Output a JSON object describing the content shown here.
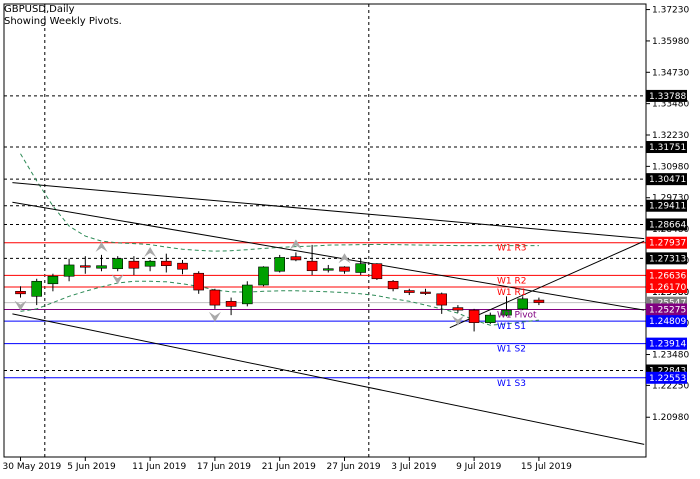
{
  "header": {
    "symbol_line": "GBPUSD,Daily",
    "indicator_line": "Showing Weekly Pivots."
  },
  "colors": {
    "background": "#ffffff",
    "frame": "#000000",
    "grid": "#000000",
    "bull": "#00a000",
    "bear": "#ff0000",
    "resistance": "#ff0000",
    "support": "#0000ff",
    "pivot": "#800080",
    "envelope": "#2e8b57",
    "fractal": "#a9a9a9",
    "trendline": "#000000"
  },
  "chart_data": {
    "type": "candlestick",
    "ylim": [
      1.19395,
      1.37452
    ],
    "y_ticks": [
      "1.37230",
      "1.35980",
      "1.34730",
      "1.33480",
      "1.32230",
      "1.30980",
      "1.29730",
      "1.28480",
      "1.27230",
      "1.25980",
      "1.24730",
      "1.23480",
      "1.22250",
      "1.20980"
    ],
    "x_tick_labels": [
      "30 May 2019",
      "5 Jun 2019",
      "11 Jun 2019",
      "17 Jun 2019",
      "21 Jun 2019",
      "27 Jun 2019",
      "3 Jul 2019",
      "9 Jul 2019",
      "15 Jul 2019"
    ],
    "x_tick_index": [
      0,
      4,
      8,
      12,
      16,
      20,
      24,
      28,
      32
    ],
    "vertical_grid_index": [
      1.5,
      21.5
    ],
    "horizontal_grid_prices": [
      1.33788,
      1.31751,
      1.30471,
      1.29411,
      1.28664,
      1.27313,
      1.22843
    ],
    "horizontal_grid_labels": [
      "1.33788",
      "1.31751",
      "1.30471",
      "1.29411",
      "1.28664",
      "1.27313",
      "1.22843"
    ],
    "pivot_lines": [
      {
        "label": "W1 R3",
        "price": 1.27937,
        "value_text": "1.27937",
        "color": "#ff0000"
      },
      {
        "label": "W1 R2",
        "price": 1.26636,
        "value_text": "1.26636",
        "color": "#ff0000"
      },
      {
        "label": "W1 R1",
        "price": 1.2617,
        "value_text": "1.26170",
        "color": "#ff0000"
      },
      {
        "label": "W1 Pivot",
        "price": 1.25275,
        "value_text": "1.25275",
        "color": "#800080"
      },
      {
        "label": "W1 S1",
        "price": 1.24809,
        "value_text": "1.24809",
        "color": "#0000ff"
      },
      {
        "label": "W1 S2",
        "price": 1.23914,
        "value_text": "1.23914",
        "color": "#0000ff"
      },
      {
        "label": "W1 S3",
        "price": 1.22553,
        "value_text": "1.22553",
        "color": "#0000ff"
      }
    ],
    "current_price": {
      "price": 1.25547,
      "value_text": "1.25547"
    },
    "partial_tick_text": "1.25980",
    "candles": [
      {
        "o": 1.26,
        "h": 1.262,
        "l": 1.2575,
        "c": 1.259
      },
      {
        "o": 1.258,
        "h": 1.265,
        "l": 1.2545,
        "c": 1.264
      },
      {
        "o": 1.263,
        "h": 1.267,
        "l": 1.26,
        "c": 1.266
      },
      {
        "o": 1.266,
        "h": 1.273,
        "l": 1.264,
        "c": 1.2705
      },
      {
        "o": 1.2702,
        "h": 1.274,
        "l": 1.267,
        "c": 1.27
      },
      {
        "o": 1.2692,
        "h": 1.2745,
        "l": 1.268,
        "c": 1.2702
      },
      {
        "o": 1.269,
        "h": 1.274,
        "l": 1.268,
        "c": 1.273
      },
      {
        "o": 1.272,
        "h": 1.274,
        "l": 1.2665,
        "c": 1.2692
      },
      {
        "o": 1.27,
        "h": 1.2725,
        "l": 1.268,
        "c": 1.272
      },
      {
        "o": 1.272,
        "h": 1.275,
        "l": 1.2675,
        "c": 1.2702
      },
      {
        "o": 1.2712,
        "h": 1.2725,
        "l": 1.2668,
        "c": 1.2688
      },
      {
        "o": 1.2672,
        "h": 1.268,
        "l": 1.259,
        "c": 1.2605
      },
      {
        "o": 1.2605,
        "h": 1.261,
        "l": 1.253,
        "c": 1.2545
      },
      {
        "o": 1.256,
        "h": 1.2575,
        "l": 1.2505,
        "c": 1.254
      },
      {
        "o": 1.255,
        "h": 1.264,
        "l": 1.254,
        "c": 1.2625
      },
      {
        "o": 1.2625,
        "h": 1.27,
        "l": 1.262,
        "c": 1.2697
      },
      {
        "o": 1.268,
        "h": 1.2745,
        "l": 1.2675,
        "c": 1.2735
      },
      {
        "o": 1.2738,
        "h": 1.2755,
        "l": 1.272,
        "c": 1.2725
      },
      {
        "o": 1.272,
        "h": 1.2785,
        "l": 1.2665,
        "c": 1.2682
      },
      {
        "o": 1.269,
        "h": 1.2705,
        "l": 1.2675,
        "c": 1.269
      },
      {
        "o": 1.2697,
        "h": 1.27,
        "l": 1.267,
        "c": 1.268
      },
      {
        "o": 1.2675,
        "h": 1.273,
        "l": 1.2665,
        "c": 1.271
      },
      {
        "o": 1.271,
        "h": 1.2712,
        "l": 1.2645,
        "c": 1.265
      },
      {
        "o": 1.264,
        "h": 1.2645,
        "l": 1.26,
        "c": 1.261
      },
      {
        "o": 1.2603,
        "h": 1.261,
        "l": 1.2585,
        "c": 1.2595
      },
      {
        "o": 1.2597,
        "h": 1.261,
        "l": 1.2585,
        "c": 1.2595
      },
      {
        "o": 1.259,
        "h": 1.2595,
        "l": 1.251,
        "c": 1.2545
      },
      {
        "o": 1.2535,
        "h": 1.2545,
        "l": 1.2515,
        "c": 1.2525
      },
      {
        "o": 1.2525,
        "h": 1.253,
        "l": 1.244,
        "c": 1.2475
      },
      {
        "o": 1.2475,
        "h": 1.2515,
        "l": 1.247,
        "c": 1.2505
      },
      {
        "o": 1.2505,
        "h": 1.258,
        "l": 1.25,
        "c": 1.2525
      },
      {
        "o": 1.253,
        "h": 1.258,
        "l": 1.2525,
        "c": 1.257
      },
      {
        "o": 1.2565,
        "h": 1.2575,
        "l": 1.2545,
        "c": 1.2555
      }
    ],
    "fractals_up": [
      5,
      8,
      17,
      20
    ],
    "fractals_down": [
      0,
      6,
      12,
      27
    ],
    "envelope_upper": [
      1.3148,
      1.304,
      1.294,
      1.286,
      1.282,
      1.28,
      1.2793,
      1.279,
      1.2786,
      1.2776,
      1.2768,
      1.2763,
      1.276,
      1.2762,
      1.2766,
      1.2771,
      1.2775,
      1.2778,
      1.278,
      1.2784,
      1.2785,
      1.2786,
      1.2787,
      1.2786,
      1.2785,
      1.2784,
      1.2783,
      1.2782,
      1.2782,
      1.2782,
      1.2782,
      1.2782,
      1.2782
    ],
    "envelope_lower": [
      1.252,
      1.253,
      1.2555,
      1.258,
      1.26,
      1.2618,
      1.2633,
      1.264,
      1.264,
      1.2638,
      1.263,
      1.262,
      1.2605,
      1.2598,
      1.2597,
      1.26,
      1.2602,
      1.2602,
      1.26,
      1.2598,
      1.2595,
      1.259,
      1.2583,
      1.257,
      1.256,
      1.2545,
      1.253,
      1.2513,
      1.2485,
      1.2465,
      1.247,
      1.2478,
      1.2485
    ],
    "trendlines": [
      {
        "from": [
          -0.5,
          1.3033
        ],
        "to": [
          38.5,
          1.281
        ]
      },
      {
        "from": [
          -0.5,
          1.2955
        ],
        "to": [
          38.5,
          1.2525
        ]
      },
      {
        "from": [
          -0.5,
          1.251
        ],
        "to": [
          38.5,
          1.199
        ]
      },
      {
        "from": [
          26.5,
          1.2455
        ],
        "to": [
          38.5,
          1.28
        ]
      }
    ]
  }
}
